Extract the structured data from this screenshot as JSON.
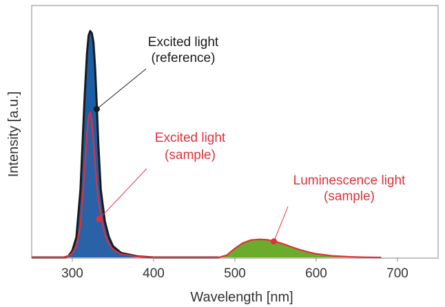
{
  "chart_data": {
    "type": "area",
    "title": "",
    "xlabel": "Wavelength [nm]",
    "ylabel": "Intensity [a.u.]",
    "xlim": [
      250,
      750
    ],
    "ylim": [
      0,
      1
    ],
    "x_ticks": [
      300,
      400,
      500,
      600,
      700
    ],
    "y_ticks": [],
    "grid": false,
    "series": [
      {
        "color": "#1a5fa6",
        "outline_color": "#1a1a1a",
        "points": [
          [
            250,
            0
          ],
          [
            290,
            0
          ],
          [
            295,
            0.005
          ],
          [
            300,
            0.03
          ],
          [
            305,
            0.09
          ],
          [
            310,
            0.3
          ],
          [
            315,
            0.7
          ],
          [
            318,
            0.9
          ],
          [
            320,
            0.98
          ],
          [
            322,
            1.0
          ],
          [
            324,
            0.99
          ],
          [
            326,
            0.95
          ],
          [
            328,
            0.84
          ],
          [
            330,
            0.68
          ],
          [
            332,
            0.5
          ],
          [
            335,
            0.3
          ],
          [
            340,
            0.16
          ],
          [
            345,
            0.09
          ],
          [
            350,
            0.05
          ],
          [
            360,
            0.02
          ],
          [
            380,
            0.005
          ],
          [
            400,
            0
          ],
          [
            480,
            0
          ]
        ]
      },
      {
        "color": "#2a62a8",
        "outline_color": "#e0303a",
        "points": [
          [
            250,
            0
          ],
          [
            290,
            0
          ],
          [
            295,
            0.005
          ],
          [
            300,
            0.02
          ],
          [
            305,
            0.05
          ],
          [
            310,
            0.14
          ],
          [
            315,
            0.38
          ],
          [
            318,
            0.54
          ],
          [
            320,
            0.62
          ],
          [
            322,
            0.64
          ],
          [
            324,
            0.6
          ],
          [
            326,
            0.52
          ],
          [
            328,
            0.42
          ],
          [
            330,
            0.33
          ],
          [
            332,
            0.26
          ],
          [
            335,
            0.19
          ],
          [
            340,
            0.1
          ],
          [
            345,
            0.06
          ],
          [
            350,
            0.035
          ],
          [
            360,
            0.015
          ],
          [
            380,
            0.004
          ],
          [
            400,
            0
          ],
          [
            480,
            0
          ]
        ]
      },
      {
        "color": "#6cac2c",
        "outline_color": "#e0303a",
        "points": [
          [
            480,
            0
          ],
          [
            490,
            0.01
          ],
          [
            500,
            0.04
          ],
          [
            510,
            0.064
          ],
          [
            520,
            0.077
          ],
          [
            530,
            0.08
          ],
          [
            540,
            0.078
          ],
          [
            550,
            0.07
          ],
          [
            560,
            0.059
          ],
          [
            570,
            0.046
          ],
          [
            580,
            0.034
          ],
          [
            590,
            0.024
          ],
          [
            600,
            0.016
          ],
          [
            620,
            0.007
          ],
          [
            640,
            0.003
          ],
          [
            660,
            0.001
          ],
          [
            680,
            0
          ]
        ]
      }
    ],
    "annotations": [
      {
        "lines": [
          "Excited light",
          "(reference)"
        ],
        "color": "#1a1a1a",
        "point": [
          330,
          0.655
        ]
      },
      {
        "lines": [
          "Excited light",
          "(sample)"
        ],
        "color": "#e0303a",
        "point": [
          333,
          0.17
        ]
      },
      {
        "lines": [
          "Luminescence light",
          "(sample)"
        ],
        "color": "#e0303a",
        "point": [
          548,
          0.071
        ]
      }
    ]
  }
}
